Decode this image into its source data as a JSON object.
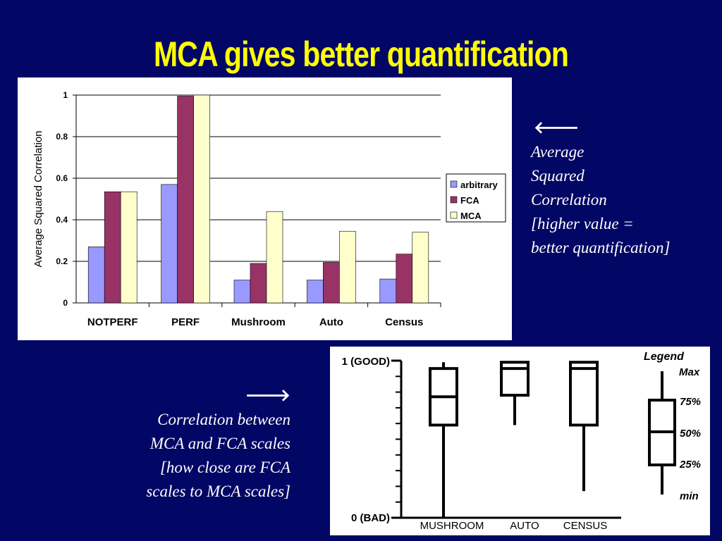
{
  "slide": {
    "title": "MCA gives better quantification"
  },
  "notes": {
    "right": {
      "arrow": "🡐",
      "lines": [
        "Average",
        "Squared",
        "Correlation",
        "[higher value =",
        "better quantification]"
      ]
    },
    "left": {
      "arrow": "🡒",
      "lines": [
        "Correlation between",
        "MCA and FCA scales",
        "[how close are FCA",
        "scales to MCA scales]"
      ]
    }
  },
  "chart_data": [
    {
      "type": "bar",
      "title": "",
      "xlabel": "",
      "ylabel": "Average Squared Correlation",
      "categories": [
        "NOTPERF",
        "PERF",
        "Mushroom",
        "Auto",
        "Census"
      ],
      "ylim": [
        0,
        1
      ],
      "yticks": [
        "0",
        "0.2",
        "0.4",
        "0.6",
        "0.8",
        "1"
      ],
      "grid": true,
      "legend": "right",
      "series": [
        {
          "name": "arbitrary",
          "color": "#9999ff",
          "values": [
            0.27,
            0.57,
            0.11,
            0.11,
            0.115
          ]
        },
        {
          "name": "FCA",
          "color": "#993366",
          "values": [
            0.535,
            0.995,
            0.19,
            0.195,
            0.235
          ]
        },
        {
          "name": "MCA",
          "color": "#ffffcc",
          "values": [
            0.535,
            1.0,
            0.44,
            0.345,
            0.34
          ]
        }
      ]
    },
    {
      "type": "box",
      "categories": [
        "MUSHROOM",
        "AUTO",
        "CENSUS"
      ],
      "ylim": [
        0,
        1
      ],
      "y_top_label": "1 (GOOD)",
      "y_bottom_label": "0 (BAD)",
      "boxes": [
        {
          "name": "MUSHROOM",
          "min": 0.0,
          "q1": 0.59,
          "median": 0.77,
          "q3": 0.95,
          "max": 0.99
        },
        {
          "name": "AUTO",
          "min": 0.59,
          "q1": 0.78,
          "median": 0.95,
          "q3": 0.99,
          "max": 0.995
        },
        {
          "name": "CENSUS",
          "min": 0.17,
          "q1": 0.59,
          "median": 0.95,
          "q3": 0.99,
          "max": 0.995
        }
      ],
      "legend": {
        "title": "Legend",
        "labels": [
          "Max",
          "75%",
          "50%",
          "25%",
          "min"
        ]
      }
    }
  ]
}
